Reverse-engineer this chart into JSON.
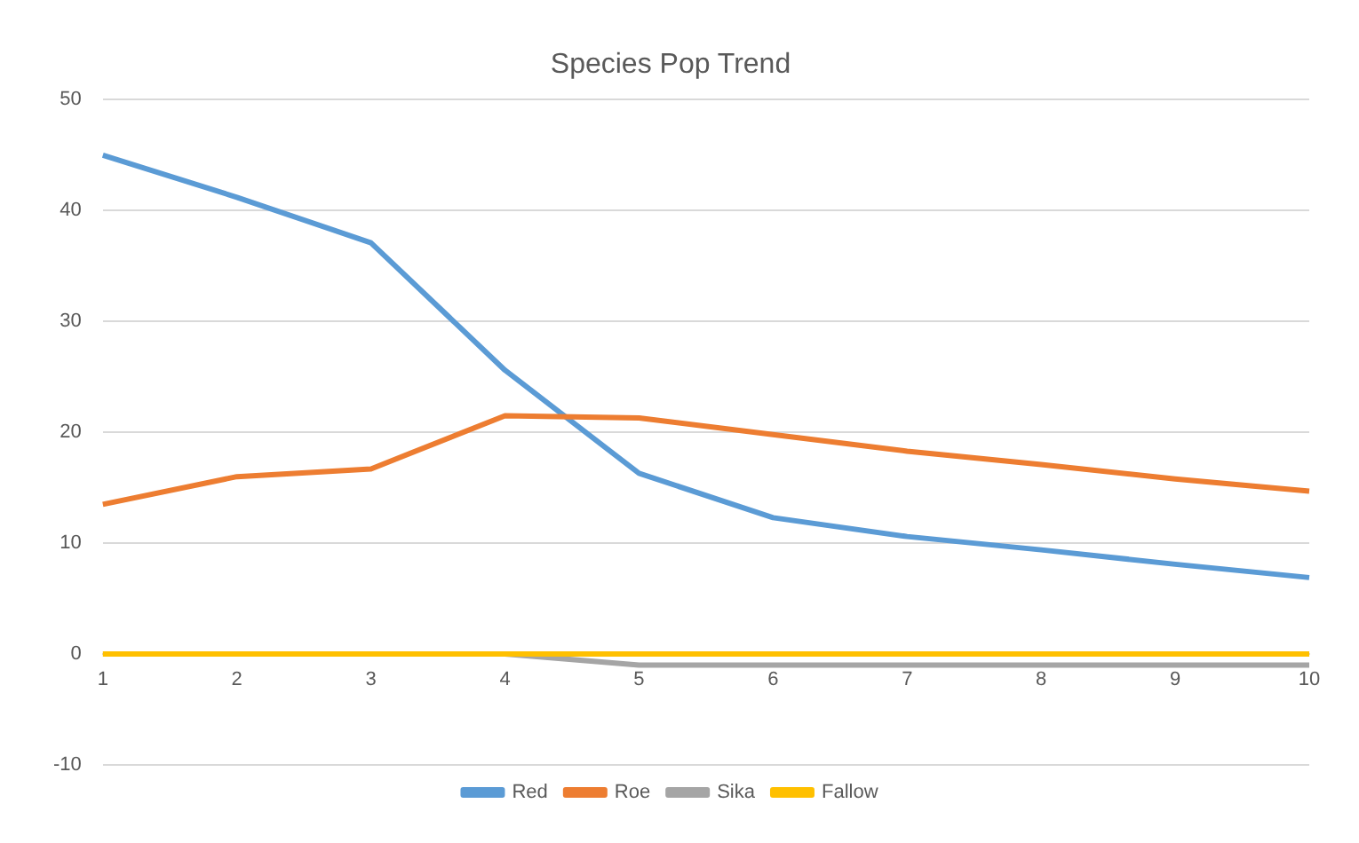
{
  "chart_data": {
    "type": "line",
    "title": "Species Pop Trend",
    "categories": [
      "1",
      "2",
      "3",
      "4",
      "5",
      "6",
      "7",
      "8",
      "9",
      "10"
    ],
    "series": [
      {
        "name": "Red",
        "color": "#5b9bd5",
        "values": [
          45,
          41.2,
          37.1,
          25.6,
          16.3,
          12.3,
          10.6,
          9.4,
          8.1,
          6.9
        ]
      },
      {
        "name": "Roe",
        "color": "#ed7d31",
        "values": [
          13.5,
          16,
          16.7,
          21.5,
          21.3,
          19.8,
          18.3,
          17.1,
          15.8,
          14.7
        ]
      },
      {
        "name": "Sika",
        "color": "#a5a5a5",
        "values": [
          null,
          null,
          null,
          0,
          -1,
          -1,
          -1,
          -1,
          -1,
          -1
        ]
      },
      {
        "name": "Fallow",
        "color": "#ffc000",
        "values": [
          0,
          0,
          0,
          0,
          0,
          0,
          0,
          0,
          0,
          0
        ]
      }
    ],
    "ylim": [
      -10,
      50
    ],
    "yticks": [
      -10,
      0,
      10,
      20,
      30,
      40,
      50
    ],
    "grid": "y",
    "legend": "bottom",
    "marker": "none",
    "line_style": "solid"
  }
}
